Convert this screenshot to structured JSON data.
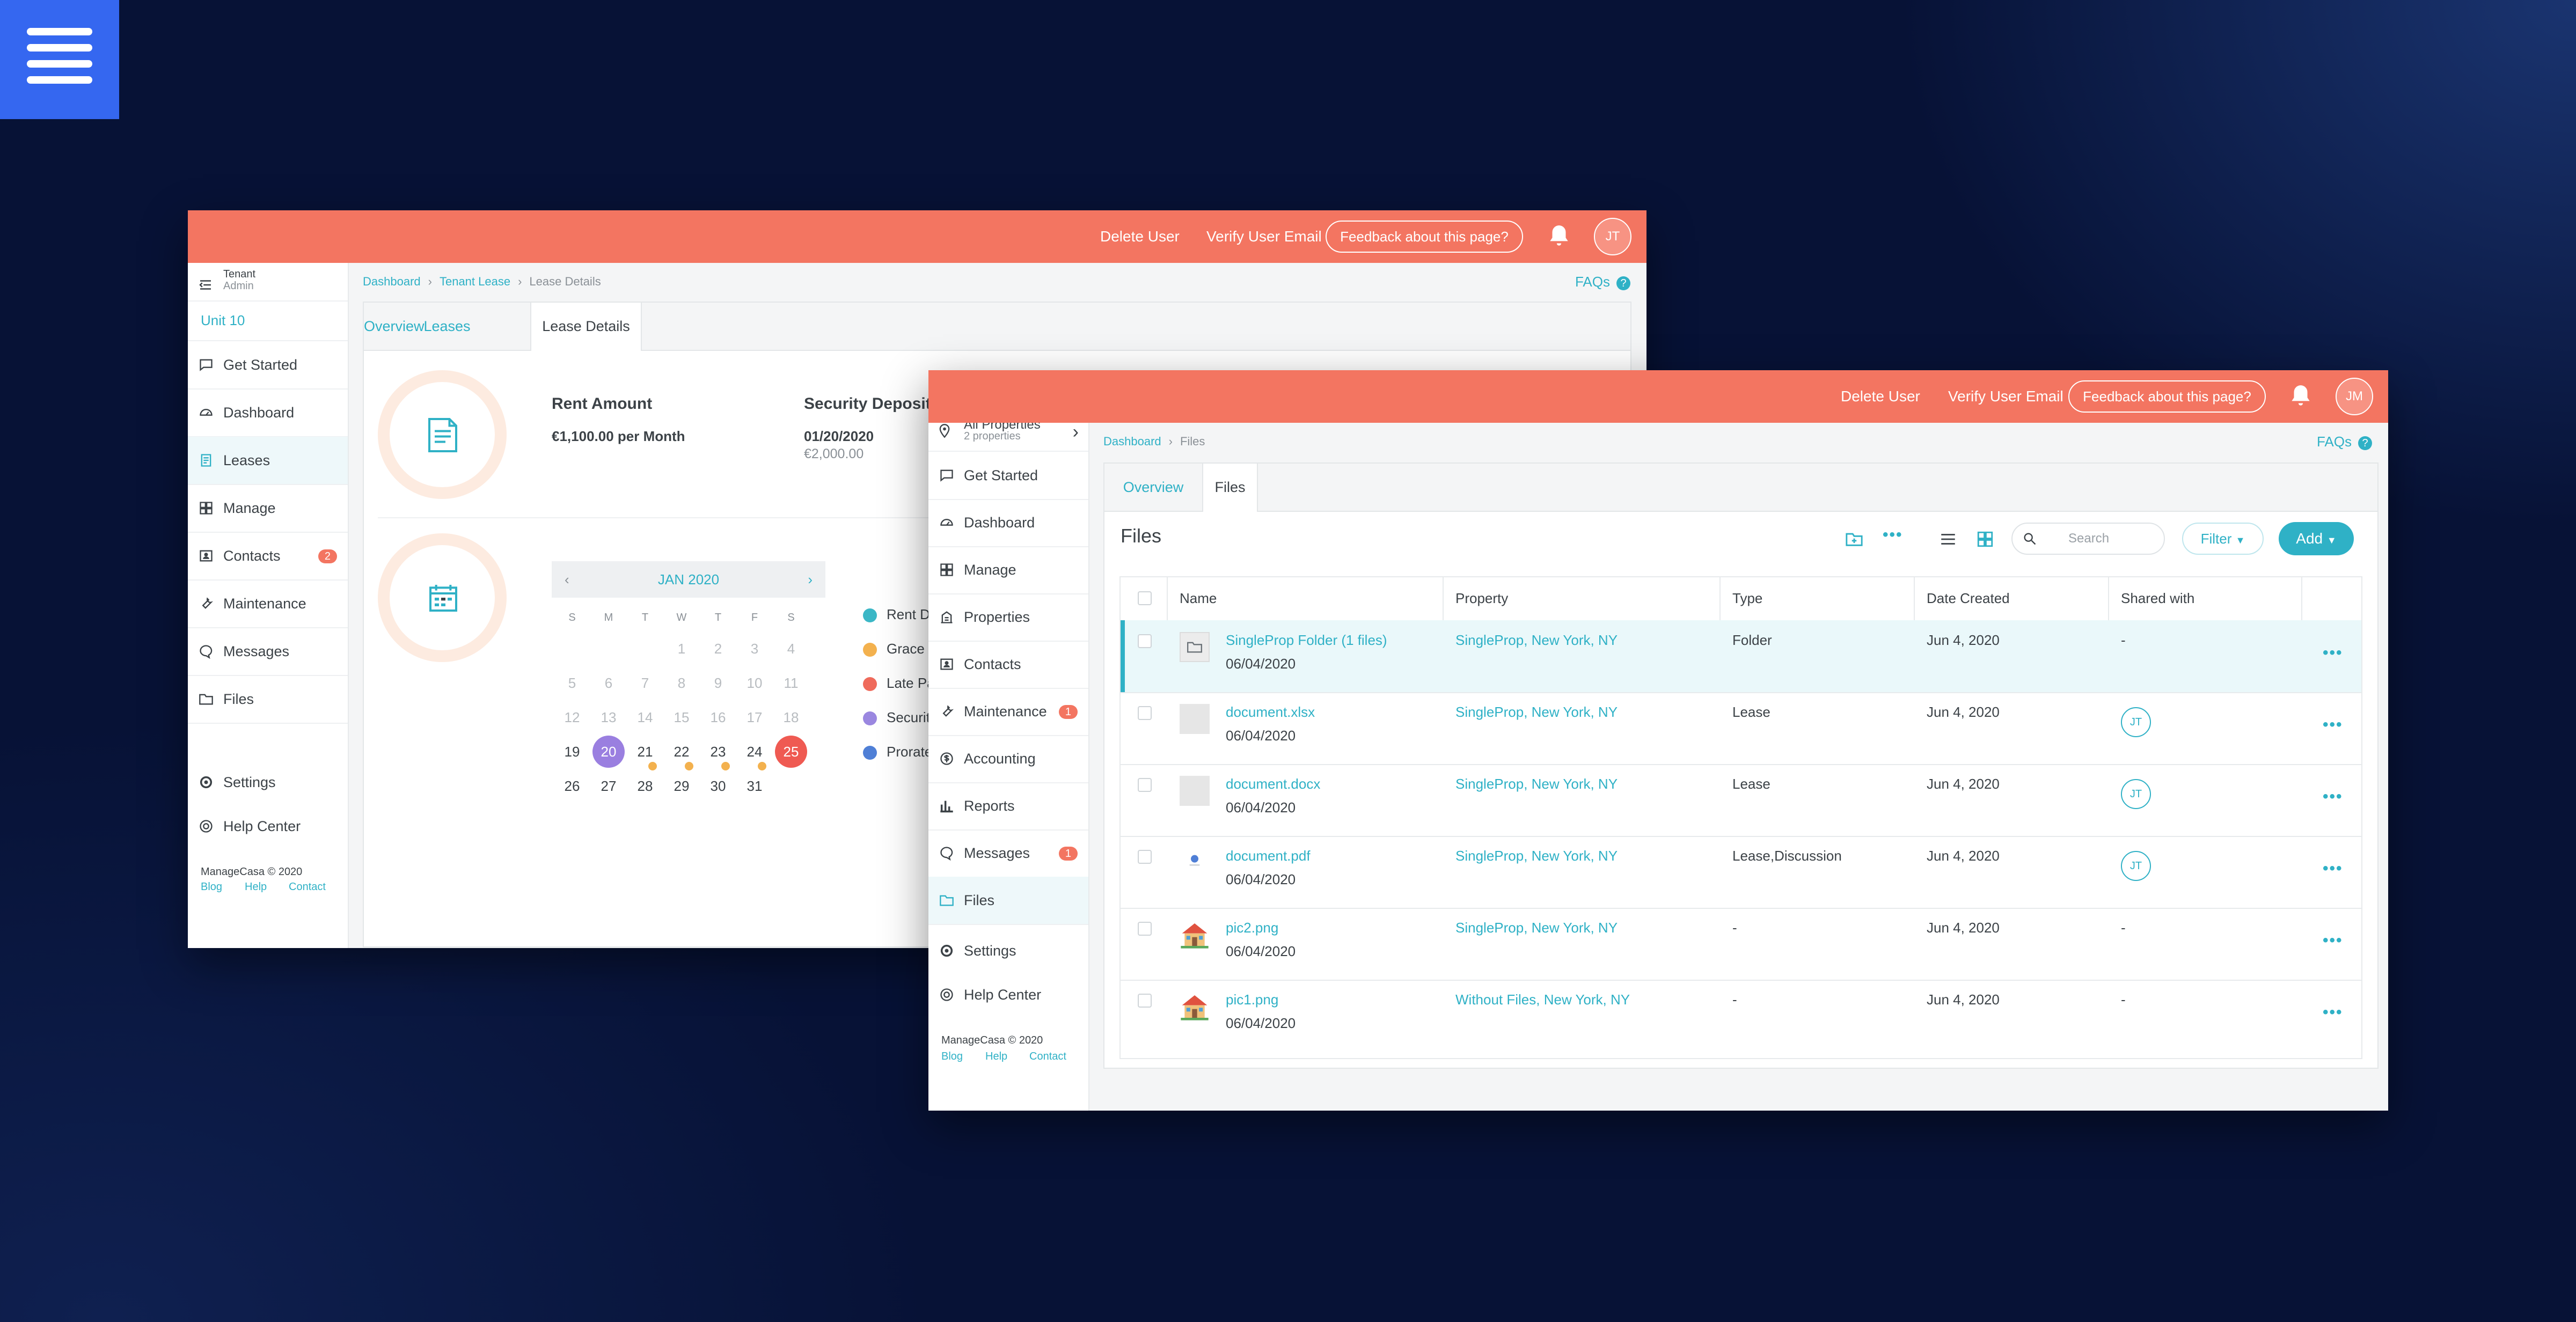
{
  "colors": {
    "accent": "#2fb1c6",
    "topbar": "#f37561",
    "badge": "#f37561",
    "menu_tile": "#3567f0"
  },
  "menu_icon": "hamburger-icon",
  "window_a": {
    "topbar": {
      "delete_user": "Delete User",
      "verify_email": "Verify User Email",
      "feedback": "Feedback about this page?",
      "avatar": "JT"
    },
    "sidebar": {
      "role_top": "Tenant",
      "role_bottom": "Admin",
      "unit": "Unit 10",
      "items": [
        {
          "label": "Get Started",
          "icon": "chat-icon"
        },
        {
          "label": "Dashboard",
          "icon": "gauge-icon"
        },
        {
          "label": "Leases",
          "icon": "lease-icon"
        },
        {
          "label": "Manage",
          "icon": "grid-icon"
        },
        {
          "label": "Contacts",
          "icon": "contact-card-icon",
          "badge": "2"
        },
        {
          "label": "Maintenance",
          "icon": "wrench-icon"
        },
        {
          "label": "Messages",
          "icon": "message-icon"
        },
        {
          "label": "Files",
          "icon": "folder-icon"
        }
      ],
      "settings": "Settings",
      "help_center": "Help Center",
      "copyright": "ManageCasa © 2020",
      "footer_links": [
        "Blog",
        "Help",
        "Contact"
      ]
    },
    "breadcrumb": [
      "Dashboard",
      "Tenant Lease",
      "Lease Details"
    ],
    "faqs": "FAQs",
    "tabs": [
      "Overview",
      "Leases",
      "Lease Details"
    ],
    "rent": {
      "label": "Rent Amount",
      "value": "€1,100.00 per Month"
    },
    "deposit": {
      "label": "Security Deposit D",
      "date": "01/20/2020",
      "amount": "€2,000.00"
    },
    "calendar": {
      "month": "JAN 2020",
      "weekdays": [
        "S",
        "M",
        "T",
        "W",
        "T",
        "F",
        "S"
      ],
      "weeks": [
        [
          "",
          "",
          "",
          "1",
          "2",
          "3",
          "4"
        ],
        [
          "5",
          "6",
          "7",
          "8",
          "9",
          "10",
          "11"
        ],
        [
          "12",
          "13",
          "14",
          "15",
          "16",
          "17",
          "18"
        ],
        [
          "19",
          "20",
          "21",
          "22",
          "23",
          "24",
          "25"
        ],
        [
          "26",
          "27",
          "28",
          "29",
          "30",
          "31",
          ""
        ]
      ]
    },
    "legend": [
      {
        "label": "Rent D",
        "color": "#3bb7c6"
      },
      {
        "label": "Grace I",
        "color": "#f3b14e"
      },
      {
        "label": "Late Pa",
        "color": "#ef6a5b"
      },
      {
        "label": "Securit",
        "color": "#9a87e0"
      },
      {
        "label": "Prorate",
        "color": "#4f7fd6"
      }
    ]
  },
  "window_b": {
    "topbar": {
      "delete_user": "Delete User",
      "verify_email": "Verify User Email",
      "feedback": "Feedback about this page?",
      "avatar": "JM"
    },
    "sidebar": {
      "property_title": "All Properties",
      "property_sub": "2 properties",
      "items": [
        {
          "label": "Get Started",
          "icon": "chat-icon"
        },
        {
          "label": "Dashboard",
          "icon": "gauge-icon"
        },
        {
          "label": "Manage",
          "icon": "grid-icon"
        },
        {
          "label": "Properties",
          "icon": "building-icon"
        },
        {
          "label": "Contacts",
          "icon": "contact-card-icon"
        },
        {
          "label": "Maintenance",
          "icon": "wrench-icon",
          "badge": "1"
        },
        {
          "label": "Accounting",
          "icon": "dollar-icon"
        },
        {
          "label": "Reports",
          "icon": "bar-chart-icon"
        },
        {
          "label": "Messages",
          "icon": "message-icon",
          "badge": "1"
        },
        {
          "label": "Files",
          "icon": "folder-icon"
        }
      ],
      "settings": "Settings",
      "help_center": "Help Center",
      "copyright": "ManageCasa © 2020",
      "footer_links": [
        "Blog",
        "Help",
        "Contact"
      ]
    },
    "breadcrumb": [
      "Dashboard",
      "Files"
    ],
    "faqs": "FAQs",
    "tabs": [
      "Overview",
      "Files"
    ],
    "files": {
      "title": "Files",
      "search_placeholder": "Search",
      "filter": "Filter",
      "add": "Add",
      "columns": [
        "Name",
        "Property",
        "Type",
        "Date Created",
        "Shared with"
      ],
      "rows": [
        {
          "name": "SingleProp Folder (1 files)",
          "date": "06/04/2020",
          "property": "SingleProp, New York, NY",
          "type": "Folder",
          "created": "Jun 4, 2020",
          "shared": "-",
          "thumb": "folder-icon"
        },
        {
          "name": "document.xlsx",
          "date": "06/04/2020",
          "property": "SingleProp, New York, NY",
          "type": "Lease",
          "created": "Jun 4, 2020",
          "shared": "JT",
          "thumb": "file-icon"
        },
        {
          "name": "document.docx",
          "date": "06/04/2020",
          "property": "SingleProp, New York, NY",
          "type": "Lease",
          "created": "Jun 4, 2020",
          "shared": "JT",
          "thumb": "file-icon"
        },
        {
          "name": "document.pdf",
          "date": "06/04/2020",
          "property": "SingleProp, New York, NY",
          "type": "Lease,Discussion",
          "created": "Jun 4, 2020",
          "shared": "JT",
          "thumb": "pdf-icon"
        },
        {
          "name": "pic2.png",
          "date": "06/04/2020",
          "property": "SingleProp, New York, NY",
          "type": "-",
          "created": "Jun 4, 2020",
          "shared": "-",
          "thumb": "house-image-icon"
        },
        {
          "name": "pic1.png",
          "date": "06/04/2020",
          "property": "Without Files, New York, NY",
          "type": "-",
          "created": "Jun 4, 2020",
          "shared": "-",
          "thumb": "house-image-icon"
        }
      ]
    }
  }
}
